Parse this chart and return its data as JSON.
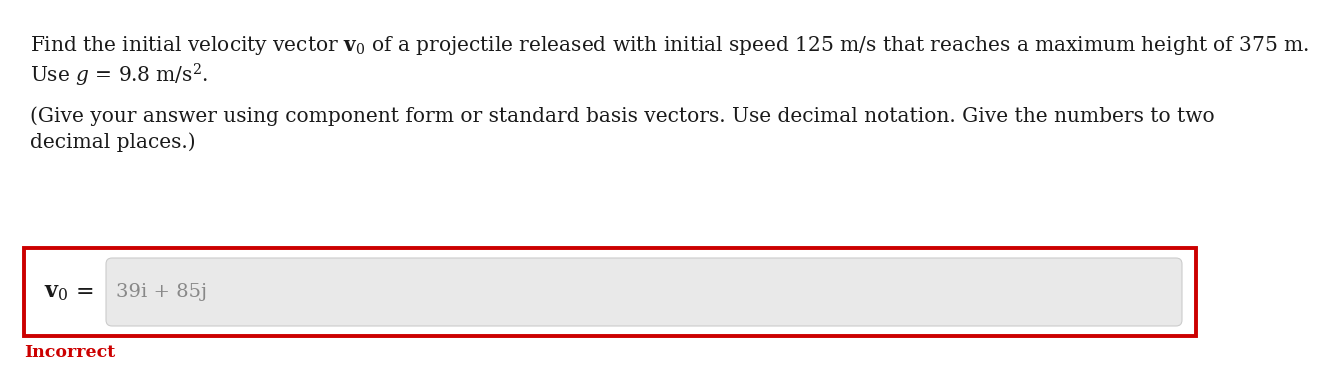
{
  "text_line1a": "Find the initial velocity vector ",
  "text_line1b": " of a projectile released with initial speed 125 m/s that reaches a maximum height of 375 m.",
  "text_line2a": "Use ",
  "text_line2b": " = 9.8 m/s².",
  "text_line3": "(Give your answer using component form or standard basis vectors. Use decimal notation. Give the numbers to two",
  "text_line4": "decimal places.)",
  "input_text": "39i + 85j",
  "incorrect_text": "Incorrect",
  "bg_color": "#ffffff",
  "text_color": "#1a1a1a",
  "incorrect_color": "#cc0000",
  "box_border_color": "#cc0000",
  "input_box_color": "#e9e9e9",
  "input_box_border": "#cccccc",
  "font_size_main": 14.5,
  "font_size_incorrect": 12.5
}
